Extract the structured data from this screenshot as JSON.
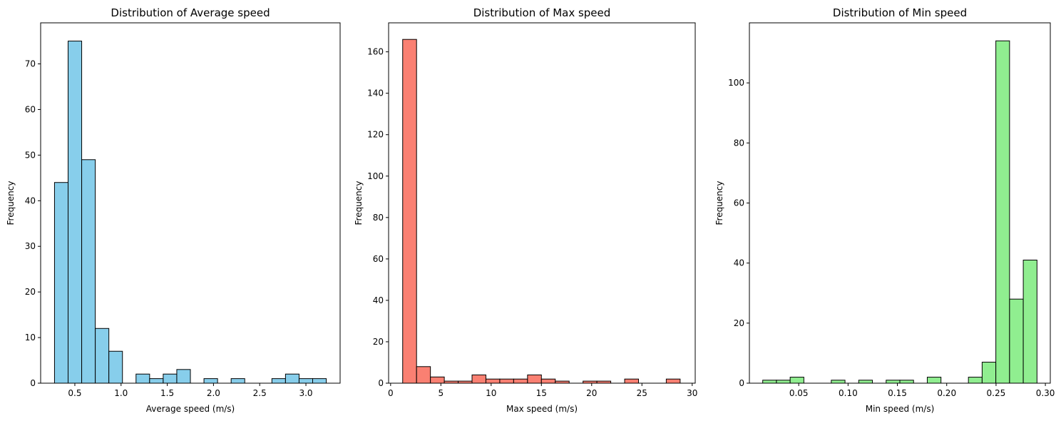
{
  "chart_data": [
    {
      "type": "bar",
      "title": "Distribution of Average speed",
      "xlabel": "Average speed (m/s)",
      "ylabel": "Frequency",
      "color": "#87ceeb",
      "xlim": [
        0.13,
        3.37
      ],
      "ylim": [
        0,
        79
      ],
      "xticks": [
        0.5,
        1.0,
        1.5,
        2.0,
        2.5,
        3.0
      ],
      "xtick_labels": [
        "0.5",
        "1.0",
        "1.5",
        "2.0",
        "2.5",
        "3.0"
      ],
      "yticks": [
        0,
        10,
        20,
        30,
        40,
        50,
        60,
        70
      ],
      "ytick_labels": [
        "0",
        "10",
        "20",
        "30",
        "40",
        "50",
        "60",
        "70"
      ],
      "bin_start": 0.28,
      "bin_width": 0.147,
      "values": [
        44,
        75,
        49,
        12,
        7,
        0,
        2,
        1,
        2,
        3,
        0,
        1,
        0,
        1,
        0,
        0,
        1,
        2,
        1,
        1
      ]
    },
    {
      "type": "bar",
      "title": "Distribution of Max speed",
      "xlabel": "Max speed (m/s)",
      "ylabel": "Frequency",
      "color": "#fa8072",
      "xlim": [
        -0.2,
        30.3
      ],
      "ylim": [
        0,
        174
      ],
      "xticks": [
        0,
        5,
        10,
        15,
        20,
        25,
        30
      ],
      "xtick_labels": [
        "0",
        "5",
        "10",
        "15",
        "20",
        "25",
        "30"
      ],
      "yticks": [
        0,
        20,
        40,
        60,
        80,
        100,
        120,
        140,
        160
      ],
      "ytick_labels": [
        "0",
        "20",
        "40",
        "60",
        "80",
        "100",
        "120",
        "140",
        "160"
      ],
      "bin_start": 1.2,
      "bin_width": 1.38,
      "values": [
        166,
        8,
        3,
        1,
        1,
        4,
        2,
        2,
        2,
        4,
        2,
        1,
        0,
        1,
        1,
        0,
        2,
        0,
        0,
        2
      ]
    },
    {
      "type": "bar",
      "title": "Distribution of Min speed",
      "xlabel": "Min speed (m/s)",
      "ylabel": "Frequency",
      "color": "#90ee90",
      "xlim": [
        0.0,
        0.305
      ],
      "ylim": [
        0,
        120
      ],
      "xticks": [
        0.05,
        0.1,
        0.15,
        0.2,
        0.25,
        0.3
      ],
      "xtick_labels": [
        "0.05",
        "0.10",
        "0.15",
        "0.20",
        "0.25",
        "0.30"
      ],
      "yticks": [
        0,
        20,
        40,
        60,
        80,
        100
      ],
      "ytick_labels": [
        "0",
        "20",
        "40",
        "60",
        "80",
        "100"
      ],
      "bin_start": 0.0135,
      "bin_width": 0.0139,
      "values": [
        1,
        1,
        2,
        0,
        0,
        1,
        0,
        1,
        0,
        1,
        1,
        0,
        2,
        0,
        0,
        2,
        7,
        114,
        28,
        41
      ]
    }
  ]
}
